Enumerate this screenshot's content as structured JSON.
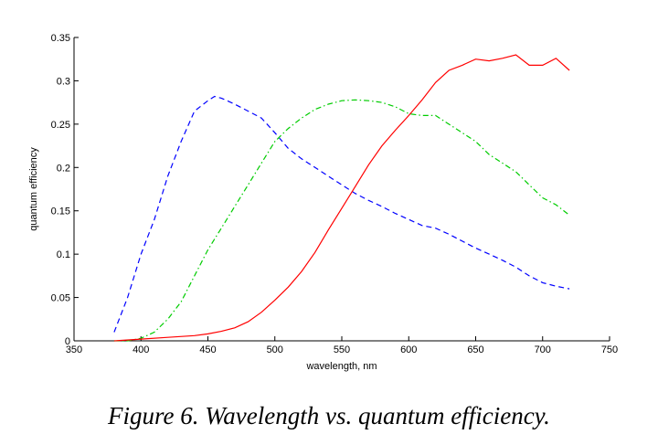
{
  "caption": "Figure 6. Wavelength vs. quantum efficiency.",
  "chart_data": {
    "type": "line",
    "title": "",
    "xlabel": "wavelength, nm",
    "ylabel": "quantum efficiency",
    "xlim": [
      350,
      750
    ],
    "ylim": [
      0,
      0.35
    ],
    "xticks": [
      350,
      400,
      450,
      500,
      550,
      600,
      650,
      700,
      750
    ],
    "yticks": [
      0,
      0.05,
      0.1,
      0.15,
      0.2,
      0.25,
      0.3,
      0.35
    ],
    "yticklabels": [
      "0",
      "0.05",
      "0.1",
      "0.15",
      "0.2",
      "0.25",
      "0.3",
      "0.35"
    ],
    "grid": false,
    "series": [
      {
        "color": "#0000ff",
        "dash": "dashed",
        "x": [
          380,
          390,
          400,
          410,
          420,
          430,
          440,
          450,
          455,
          460,
          470,
          480,
          490,
          500,
          510,
          520,
          530,
          540,
          550,
          560,
          570,
          580,
          590,
          600,
          610,
          620,
          630,
          640,
          650,
          660,
          670,
          680,
          690,
          700,
          710,
          720
        ],
        "y": [
          0.01,
          0.05,
          0.1,
          0.14,
          0.19,
          0.23,
          0.265,
          0.277,
          0.282,
          0.28,
          0.273,
          0.265,
          0.257,
          0.24,
          0.222,
          0.21,
          0.2,
          0.19,
          0.18,
          0.17,
          0.162,
          0.155,
          0.147,
          0.14,
          0.133,
          0.13,
          0.123,
          0.115,
          0.107,
          0.1,
          0.093,
          0.085,
          0.075,
          0.067,
          0.063,
          0.06
        ]
      },
      {
        "color": "#00cc00",
        "dash": "dashdot",
        "x": [
          380,
          390,
          400,
          410,
          420,
          430,
          440,
          450,
          460,
          470,
          480,
          490,
          500,
          510,
          520,
          530,
          540,
          550,
          560,
          570,
          580,
          590,
          600,
          610,
          620,
          630,
          640,
          650,
          660,
          670,
          680,
          690,
          700,
          710,
          720
        ],
        "y": [
          0.0,
          0.0,
          0.003,
          0.01,
          0.025,
          0.045,
          0.075,
          0.105,
          0.13,
          0.155,
          0.18,
          0.205,
          0.23,
          0.245,
          0.257,
          0.267,
          0.273,
          0.277,
          0.278,
          0.277,
          0.275,
          0.27,
          0.262,
          0.26,
          0.26,
          0.25,
          0.24,
          0.23,
          0.215,
          0.205,
          0.195,
          0.18,
          0.165,
          0.157,
          0.145
        ]
      },
      {
        "color": "#ff0000",
        "dash": "solid",
        "x": [
          380,
          400,
          420,
          440,
          450,
          460,
          470,
          480,
          490,
          500,
          510,
          520,
          530,
          540,
          550,
          560,
          570,
          580,
          590,
          600,
          610,
          620,
          630,
          640,
          650,
          660,
          670,
          680,
          690,
          700,
          710,
          720
        ],
        "y": [
          0.0,
          0.002,
          0.004,
          0.006,
          0.008,
          0.011,
          0.015,
          0.022,
          0.033,
          0.047,
          0.062,
          0.08,
          0.102,
          0.128,
          0.153,
          0.178,
          0.203,
          0.225,
          0.243,
          0.26,
          0.278,
          0.298,
          0.312,
          0.318,
          0.325,
          0.323,
          0.326,
          0.33,
          0.318,
          0.318,
          0.326,
          0.312
        ]
      }
    ]
  }
}
